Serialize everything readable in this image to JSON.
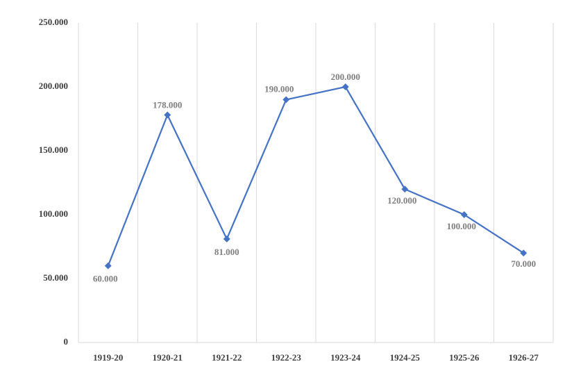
{
  "chart_data": {
    "type": "line",
    "categories": [
      "1919-20",
      "1920-21",
      "1921-22",
      "1922-23",
      "1923-24",
      "1924-25",
      "1925-26",
      "1926-27"
    ],
    "series": [
      {
        "color": "#4472c4",
        "values": [
          60000,
          178000,
          81000,
          190000,
          200000,
          120000,
          100000,
          70000
        ],
        "value_labels": [
          "60.000",
          "178.000",
          "81.000",
          "190.000",
          "200.000",
          "120.000",
          "100.000",
          "70.000"
        ]
      }
    ],
    "ylim": [
      0,
      250000
    ],
    "yticks": [
      0,
      {
        "value": 50000,
        "label": "50.000"
      },
      {
        "value": 100000,
        "label": "100.000"
      },
      {
        "value": 150000,
        "label": "150.000"
      },
      {
        "value": 200000,
        "label": "200.000"
      },
      {
        "value": 250000,
        "label": "250.000"
      }
    ],
    "grid": "vertical"
  }
}
